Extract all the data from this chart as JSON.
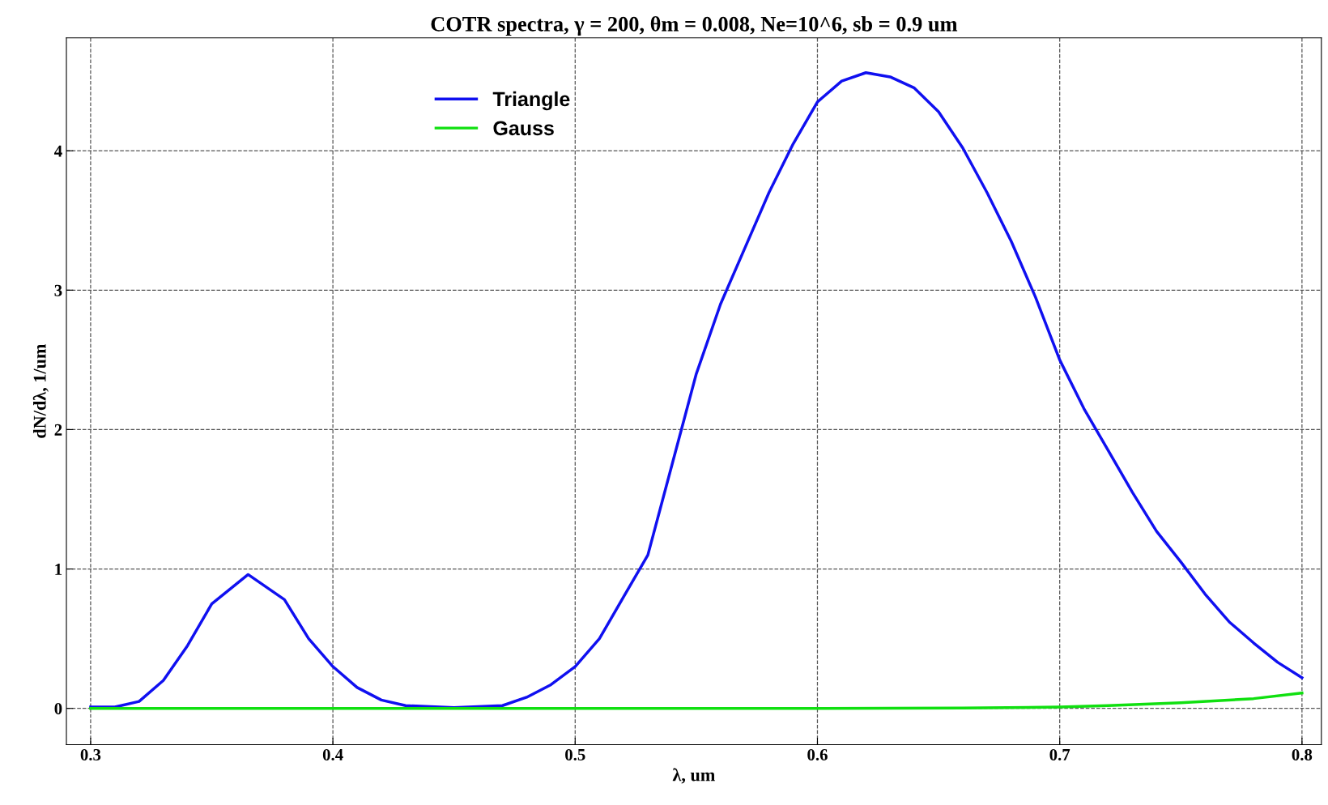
{
  "chart_data": {
    "type": "line",
    "title": "COTR spectra, γ = 200, θm = 0.008, Ne=10^6, sb = 0.9 um",
    "xlabel": "λ, um",
    "ylabel": "dN/dλ, 1/um",
    "xlim": [
      0.29,
      0.808
    ],
    "ylim": [
      -0.26,
      4.81
    ],
    "xticks": [
      0.3,
      0.4,
      0.5,
      0.6,
      0.7,
      0.8
    ],
    "yticks": [
      0,
      1,
      2,
      3,
      4
    ],
    "grid": true,
    "legend": "top left",
    "marker": "none",
    "line_style": "solid",
    "series": [
      {
        "name": "Triangle",
        "color": "#1010f0",
        "x": [
          0.3,
          0.31,
          0.32,
          0.33,
          0.34,
          0.35,
          0.365,
          0.38,
          0.39,
          0.4,
          0.41,
          0.42,
          0.43,
          0.45,
          0.47,
          0.48,
          0.49,
          0.5,
          0.51,
          0.52,
          0.53,
          0.54,
          0.55,
          0.56,
          0.57,
          0.58,
          0.59,
          0.6,
          0.61,
          0.62,
          0.63,
          0.64,
          0.65,
          0.66,
          0.67,
          0.68,
          0.69,
          0.7,
          0.71,
          0.72,
          0.73,
          0.74,
          0.75,
          0.76,
          0.77,
          0.78,
          0.79,
          0.8
        ],
        "values": [
          0.01,
          0.01,
          0.05,
          0.2,
          0.45,
          0.75,
          0.96,
          0.78,
          0.5,
          0.3,
          0.15,
          0.06,
          0.02,
          0.005,
          0.02,
          0.08,
          0.17,
          0.3,
          0.5,
          0.8,
          1.1,
          1.75,
          2.4,
          2.9,
          3.3,
          3.7,
          4.05,
          4.35,
          4.5,
          4.56,
          4.53,
          4.45,
          4.28,
          4.02,
          3.7,
          3.35,
          2.95,
          2.5,
          2.15,
          1.85,
          1.55,
          1.27,
          1.05,
          0.82,
          0.62,
          0.47,
          0.33,
          0.22
        ]
      },
      {
        "name": "Gauss",
        "color": "#10e010",
        "x": [
          0.3,
          0.4,
          0.5,
          0.6,
          0.66,
          0.7,
          0.72,
          0.75,
          0.78,
          0.8
        ],
        "values": [
          0,
          0,
          0,
          0,
          0.002,
          0.01,
          0.02,
          0.04,
          0.07,
          0.11
        ]
      }
    ]
  }
}
